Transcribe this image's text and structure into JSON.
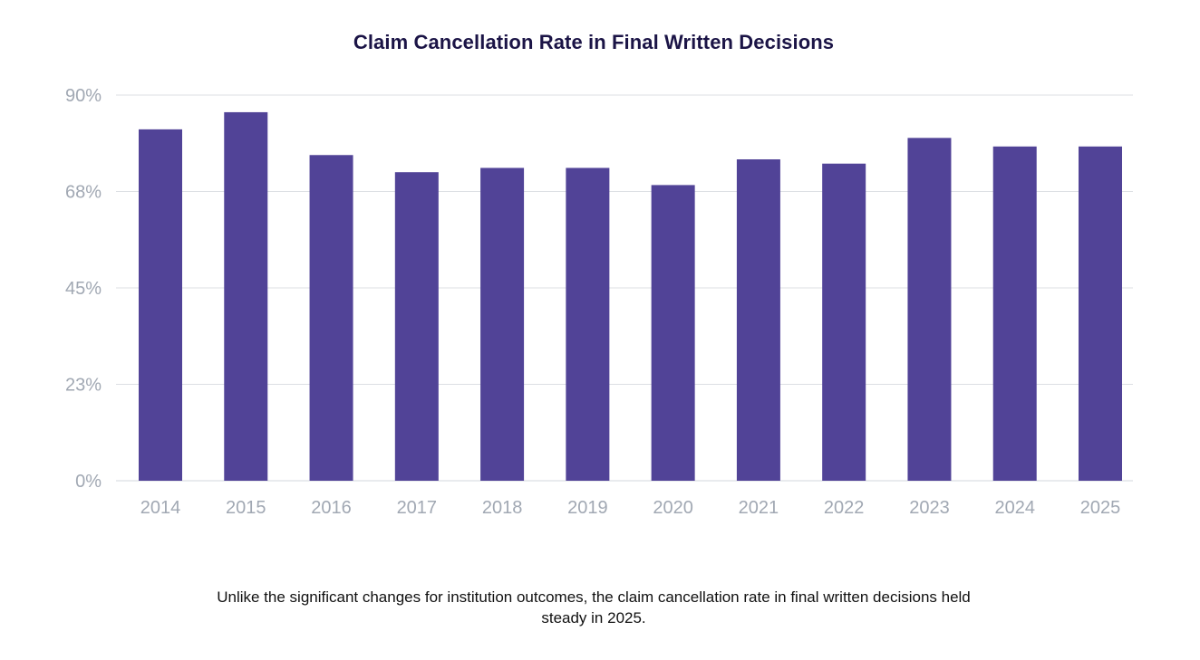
{
  "chart_data": {
    "type": "bar",
    "title": "Claim Cancellation Rate in Final Written Decisions",
    "xlabel": "",
    "ylabel": "",
    "categories": [
      "2014",
      "2015",
      "2016",
      "2017",
      "2018",
      "2019",
      "2020",
      "2021",
      "2022",
      "2023",
      "2024",
      "2025"
    ],
    "values": [
      82,
      86,
      76,
      72,
      73,
      73,
      69,
      75,
      74,
      80,
      78,
      78
    ],
    "ylim": [
      0,
      90
    ],
    "yticks": [
      0,
      22.5,
      45,
      67.5,
      90
    ],
    "ytick_labels": [
      "0%",
      "23%",
      "45%",
      "68%",
      "90%"
    ],
    "grid": true,
    "legend": "none",
    "bar_color": "#514397",
    "grid_color": "#dcdfe3",
    "tick_color": "#a1a8b3"
  },
  "caption": "Unlike the significant changes for institution outcomes, the claim cancellation rate in final written decisions held steady in 2025."
}
